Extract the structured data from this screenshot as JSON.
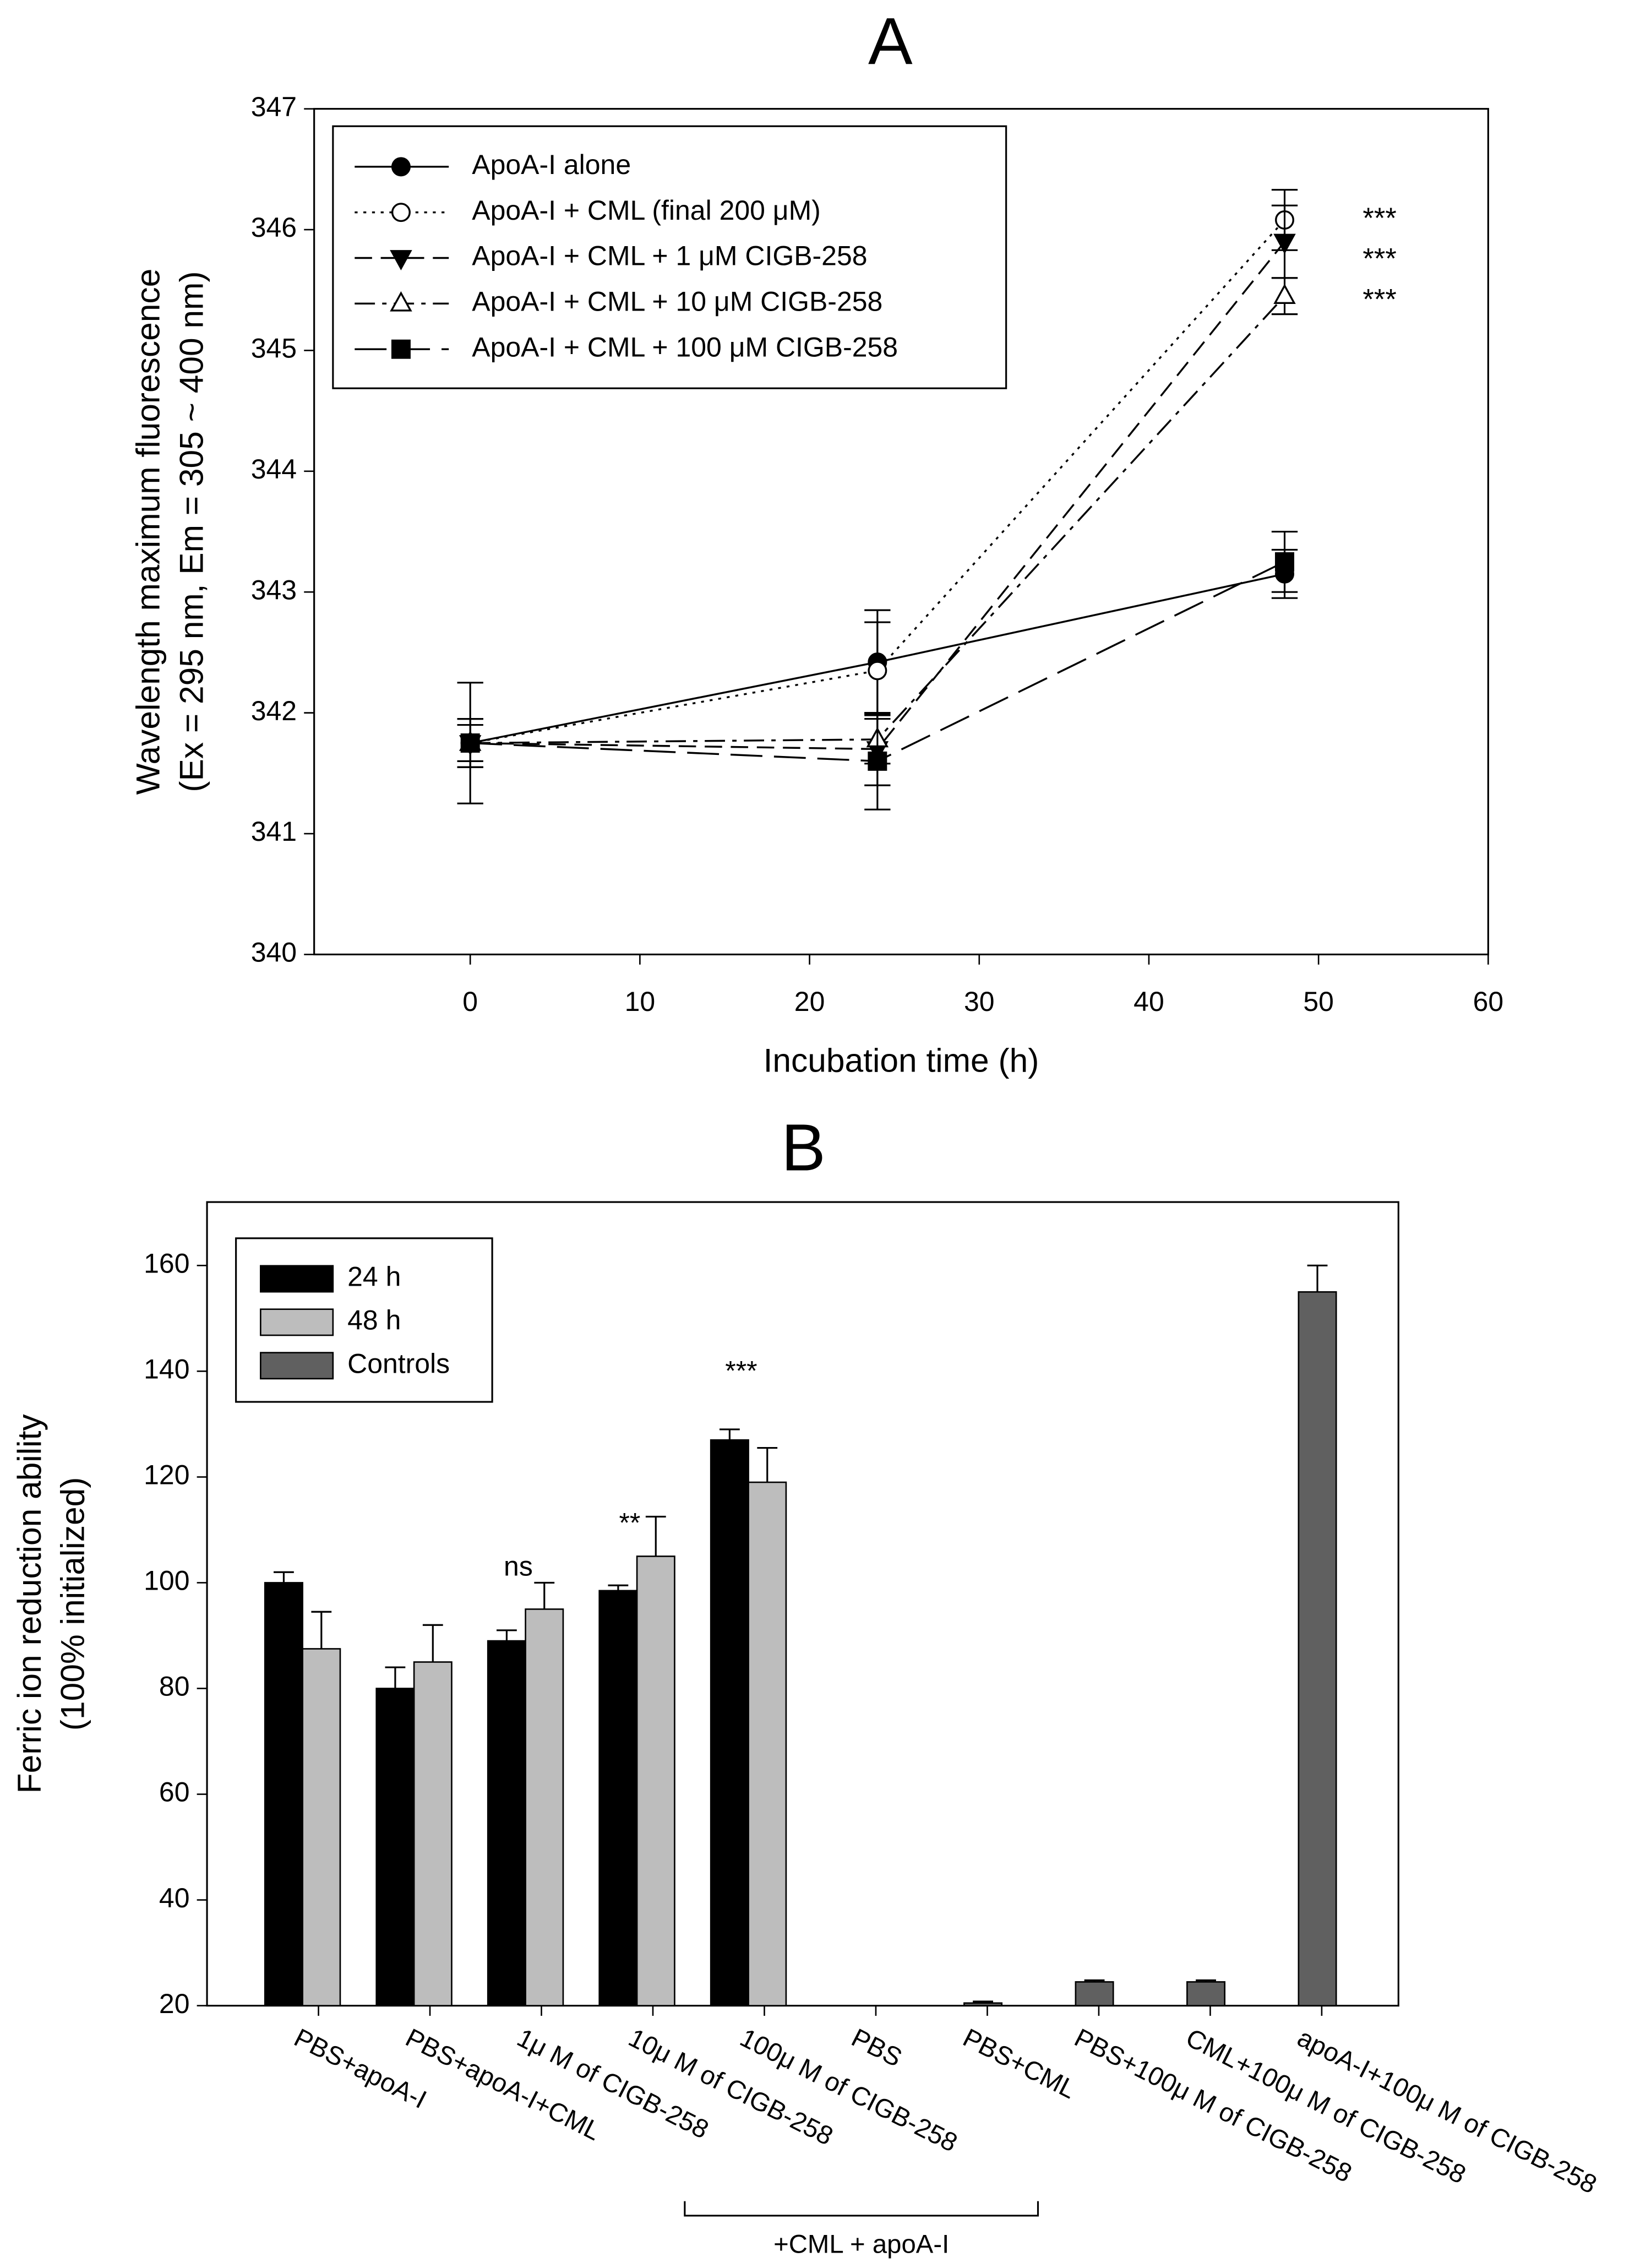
{
  "chart_data": [
    {
      "type": "line",
      "title": "A",
      "xlabel": "Incubation time (h)",
      "ylabel": [
        "Wavelength maximum fluorescence",
        "(Ex = 295 nm, Em = 305 ~ 400 nm)"
      ],
      "x": [
        0,
        24,
        48
      ],
      "xlim": [
        -9.2,
        60
      ],
      "xticks": [
        0,
        10,
        20,
        30,
        40,
        50,
        60
      ],
      "ylim": [
        340,
        347
      ],
      "yticks": [
        340,
        341,
        342,
        343,
        344,
        345,
        346,
        347
      ],
      "legend": "upper left",
      "series": [
        {
          "name": "ApoA-I alone",
          "color": "#000000",
          "marker": "circle",
          "filled": true,
          "line": "solid",
          "values": [
            341.75,
            342.42,
            343.15
          ],
          "errors": [
            0.5,
            0.43,
            0.2
          ]
        },
        {
          "name": "ApoA-I + CML (final 200 μM)",
          "color": "#000000",
          "marker": "circle",
          "filled": false,
          "line": "dotted",
          "values": [
            341.75,
            342.35,
            346.08
          ],
          "errors": [
            0.2,
            0.4,
            0.25
          ]
        },
        {
          "name": "ApoA-I + CML + 1 μM CIGB-258",
          "color": "#000000",
          "marker": "triangle-down",
          "filled": true,
          "line": "dashed",
          "values": [
            341.75,
            341.7,
            345.9
          ],
          "errors": [
            0.2,
            0.3,
            0.3
          ]
        },
        {
          "name": "ApoA-I + CML + 10 μM CIGB-258",
          "color": "#000000",
          "marker": "triangle-up",
          "filled": false,
          "line": "dash-dot",
          "values": [
            341.75,
            341.78,
            345.45
          ],
          "errors": [
            0.15,
            0.2,
            0.15
          ]
        },
        {
          "name": "ApoA-I + CML + 100 μM CIGB-258",
          "color": "#000000",
          "marker": "square",
          "filled": true,
          "line": "long-dash",
          "values": [
            341.75,
            341.6,
            343.25
          ],
          "errors": [
            0.2,
            0.4,
            0.25
          ]
        }
      ],
      "annotations": [
        "***",
        "***",
        "***"
      ]
    },
    {
      "type": "bar",
      "title": "B",
      "ylabel": [
        "Ferric ion reduction ability",
        "(100% initialized)"
      ],
      "categories": [
        "PBS+apoA-I",
        "PBS+apoA-I+CML",
        "1μ M of CIGB-258",
        "10μ M of CIGB-258",
        "100μ M of CIGB-258",
        "PBS",
        "PBS+CML",
        "PBS+100μ M of CIGB-258",
        "CML+100μ M of CIGB-258",
        "apoA-I+100μ M of CIGB-258"
      ],
      "ylim": [
        20,
        172
      ],
      "yticks": [
        20,
        40,
        60,
        80,
        100,
        120,
        140,
        160
      ],
      "legend": "upper left",
      "series": [
        {
          "name": "24 h",
          "color": "#000000",
          "values": [
            100,
            80,
            89,
            98.5,
            127,
            null,
            null,
            null,
            null,
            null
          ],
          "errors": [
            2,
            4,
            2,
            1,
            2,
            null,
            null,
            null,
            null,
            null
          ]
        },
        {
          "name": "48 h",
          "color": "#bdbdbd",
          "values": [
            87.5,
            85,
            95,
            105,
            119,
            null,
            null,
            null,
            null,
            null
          ],
          "errors": [
            7,
            7,
            5,
            7.5,
            6.5,
            null,
            null,
            null,
            null,
            null
          ]
        },
        {
          "name": "Controls",
          "color": "#606060",
          "values": [
            null,
            null,
            null,
            null,
            null,
            null,
            20.5,
            24.5,
            24.5,
            155
          ],
          "errors": [
            null,
            null,
            null,
            null,
            null,
            null,
            0.3,
            0.3,
            0.3,
            5
          ]
        }
      ],
      "annotations": [
        "ns",
        "**",
        "***"
      ],
      "group_label": "+CML + apoA-I"
    }
  ]
}
